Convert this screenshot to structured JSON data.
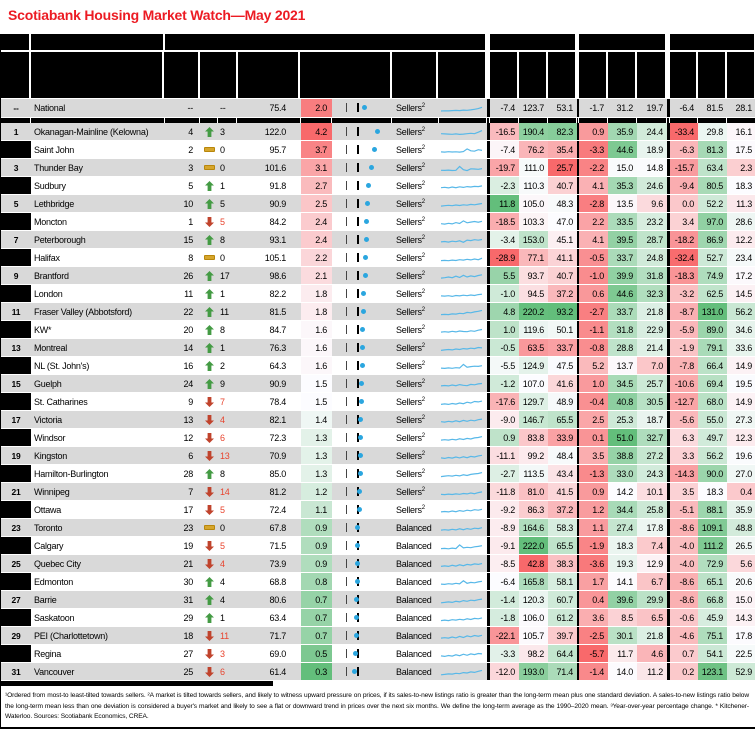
{
  "title": "Scotiabank Housing Market Watch—May 2021",
  "palette": {
    "heat_red": "#F8696B",
    "heat_white": "#FCFCFF",
    "heat_green": "#63BE7B",
    "stripe_gray": "#D9D9D9",
    "title_red": "#EC1B23",
    "spark_blue": "#58B8E8",
    "dot_blue": "#2BA6DF",
    "arrow_up_green": "#449B44",
    "arrow_down_red": "#C0432C",
    "dash_yellow": "#D6A62C",
    "change_down_red": "#E8442E",
    "national_score_color": "#F87D7F"
  },
  "national": {
    "rank": "--",
    "name": "National",
    "cur": "--",
    "dir": "none",
    "chg": "--",
    "ratio": "75.4",
    "score": "2.0",
    "status": "Sellers",
    "status_sup": "2",
    "m": [
      -7.4,
      123.7,
      53.1,
      -1.7,
      31.2,
      19.7,
      -6.4,
      81.5,
      28.1
    ],
    "spark": [
      18,
      20,
      19,
      22,
      24,
      22,
      26,
      25,
      28,
      34,
      40,
      52
    ]
  },
  "rows": [
    {
      "rank": 1,
      "name": "Okanagan-Mainline (Kelowna)",
      "cur": 4,
      "dir": "up",
      "chg": 3,
      "ratio": "122.0",
      "score": 4.2,
      "status": "Sellers",
      "m": [
        -16.5,
        190.4,
        82.3,
        0.9,
        35.9,
        24.4,
        -33.4,
        29.8,
        16.1
      ],
      "spark": [
        30,
        28,
        26,
        25,
        28,
        24,
        26,
        30,
        34,
        30,
        44,
        58
      ]
    },
    {
      "rank": 2,
      "name": "Saint John",
      "cur": 2,
      "dir": "same",
      "chg": 0,
      "ratio": "95.7",
      "score": 3.7,
      "status": "Sellers",
      "m": [
        -7.4,
        76.2,
        35.4,
        -3.3,
        44.6,
        18.9,
        -6.3,
        81.3,
        17.5
      ],
      "spark": [
        28,
        26,
        30,
        27,
        29,
        26,
        31,
        55,
        38,
        35,
        48,
        42
      ]
    },
    {
      "rank": 3,
      "name": "Thunder Bay",
      "cur": 3,
      "dir": "same",
      "chg": 0,
      "ratio": "101.6",
      "score": 3.1,
      "status": "Sellers",
      "m": [
        -19.7,
        111.0,
        25.7,
        -2.2,
        15.0,
        14.8,
        -15.7,
        63.4,
        2.3
      ],
      "spark": [
        25,
        24,
        26,
        23,
        25,
        60,
        30,
        22,
        38,
        36,
        34,
        40
      ]
    },
    {
      "rank": 4,
      "name": "Sudbury",
      "cur": 5,
      "dir": "up",
      "chg": 1,
      "ratio": "91.8",
      "score": 2.7,
      "status": "Sellers",
      "m": [
        -2.3,
        110.3,
        40.7,
        4.1,
        35.3,
        24.6,
        -9.4,
        80.5,
        18.3
      ],
      "spark": [
        30,
        34,
        28,
        36,
        30,
        38,
        33,
        40,
        36,
        42,
        40,
        46
      ]
    },
    {
      "rank": 5,
      "name": "Lethbridge",
      "cur": 10,
      "dir": "up",
      "chg": 5,
      "ratio": "90.9",
      "score": 2.5,
      "status": "Sellers",
      "m": [
        11.8,
        105.0,
        48.3,
        -2.8,
        13.5,
        9.6,
        0.0,
        52.2,
        11.3
      ],
      "spark": [
        26,
        30,
        34,
        30,
        36,
        32,
        38,
        35,
        42,
        38,
        45,
        50
      ]
    },
    {
      "rank": 6,
      "name": "Moncton",
      "cur": 1,
      "dir": "down",
      "chg": 5,
      "ratio": "84.2",
      "score": 2.4,
      "status": "Sellers",
      "m": [
        -18.5,
        103.3,
        47.0,
        2.2,
        33.5,
        23.2,
        3.4,
        97.0,
        28.6
      ],
      "spark": [
        30,
        26,
        34,
        28,
        40,
        32,
        55,
        38,
        45,
        50,
        44,
        52
      ]
    },
    {
      "rank": 7,
      "name": "Peterborough",
      "cur": 15,
      "dir": "up",
      "chg": 8,
      "ratio": "93.1",
      "score": 2.4,
      "status": "Sellers",
      "m": [
        -3.4,
        153.0,
        45.1,
        4.1,
        39.5,
        28.7,
        -18.2,
        86.9,
        12.2
      ],
      "spark": [
        28,
        32,
        26,
        35,
        30,
        38,
        25,
        45,
        40,
        48,
        44,
        50
      ]
    },
    {
      "rank": 8,
      "name": "Halifax",
      "cur": 8,
      "dir": "same",
      "chg": 0,
      "ratio": "105.1",
      "score": 2.2,
      "status": "Sellers",
      "m": [
        -28.9,
        77.1,
        41.1,
        -0.5,
        33.7,
        24.8,
        -32.4,
        52.7,
        23.4
      ],
      "spark": [
        22,
        24,
        21,
        26,
        23,
        30,
        26,
        34,
        28,
        36,
        30,
        44
      ]
    },
    {
      "rank": 9,
      "name": "Brantford",
      "cur": 26,
      "dir": "up",
      "chg": 17,
      "ratio": "98.6",
      "score": 2.1,
      "status": "Sellers",
      "m": [
        5.5,
        93.7,
        40.7,
        -1.0,
        39.9,
        31.8,
        -18.3,
        74.9,
        17.2
      ],
      "spark": [
        26,
        30,
        36,
        30,
        44,
        32,
        52,
        36,
        46,
        40,
        50,
        56
      ]
    },
    {
      "rank": 10,
      "name": "London",
      "cur": 11,
      "dir": "up",
      "chg": 1,
      "ratio": "82.2",
      "score": 1.8,
      "status": "Sellers",
      "m": [
        -1.0,
        94.5,
        37.2,
        0.6,
        44.6,
        32.3,
        -3.2,
        62.5,
        14.5
      ],
      "spark": [
        28,
        26,
        30,
        24,
        32,
        28,
        35,
        30,
        36,
        32,
        40,
        44
      ]
    },
    {
      "rank": 11,
      "name": "Fraser Valley (Abbotsford)",
      "cur": 22,
      "dir": "up",
      "chg": 11,
      "ratio": "81.5",
      "score": 1.8,
      "status": "Sellers",
      "m": [
        4.8,
        220.2,
        93.2,
        -2.7,
        33.7,
        21.8,
        -8.7,
        131.0,
        56.2
      ],
      "spark": [
        22,
        24,
        22,
        28,
        26,
        34,
        30,
        42,
        38,
        46,
        52,
        60
      ]
    },
    {
      "rank": 12,
      "name": "KW*",
      "cur": 20,
      "dir": "up",
      "chg": 8,
      "ratio": "84.7",
      "score": 1.6,
      "status": "Sellers",
      "m": [
        1.0,
        119.6,
        50.1,
        -1.1,
        31.8,
        22.9,
        -5.9,
        89.0,
        34.6
      ],
      "spark": [
        26,
        30,
        26,
        34,
        28,
        36,
        32,
        30,
        38,
        34,
        44,
        50
      ]
    },
    {
      "rank": 13,
      "name": "Montreal",
      "cur": 14,
      "dir": "up",
      "chg": 1,
      "ratio": "76.3",
      "score": 1.6,
      "status": "Sellers",
      "m": [
        -0.5,
        63.5,
        33.7,
        -0.8,
        28.8,
        21.4,
        -1.9,
        79.1,
        33.6
      ],
      "spark": [
        24,
        28,
        32,
        28,
        36,
        32,
        40,
        36,
        44,
        40,
        50,
        46
      ]
    },
    {
      "rank": 14,
      "name": "NL (St. John's)",
      "cur": 16,
      "dir": "up",
      "chg": 2,
      "ratio": "64.3",
      "score": 1.6,
      "status": "Sellers",
      "m": [
        -5.5,
        124.9,
        47.5,
        5.2,
        13.7,
        7.0,
        -7.8,
        66.4,
        14.9
      ],
      "spark": [
        26,
        24,
        28,
        25,
        30,
        27,
        60,
        35,
        40,
        44,
        42,
        48
      ]
    },
    {
      "rank": 15,
      "name": "Guelph",
      "cur": 24,
      "dir": "up",
      "chg": 9,
      "ratio": "90.9",
      "score": 1.5,
      "status": "Sellers",
      "m": [
        -1.2,
        107.0,
        41.6,
        1.0,
        34.5,
        25.7,
        -10.6,
        69.4,
        19.5
      ],
      "spark": [
        28,
        32,
        28,
        36,
        30,
        40,
        34,
        30,
        42,
        38,
        46,
        50
      ]
    },
    {
      "rank": 16,
      "name": "St. Catharines",
      "cur": 9,
      "dir": "down",
      "chg": 7,
      "ratio": "78.4",
      "score": 1.5,
      "status": "Sellers",
      "m": [
        -17.6,
        129.7,
        48.9,
        -0.4,
        40.8,
        30.5,
        -12.7,
        68.0,
        14.9
      ],
      "spark": [
        24,
        28,
        24,
        32,
        26,
        36,
        30,
        44,
        36,
        50,
        46,
        54
      ]
    },
    {
      "rank": 17,
      "name": "Victoria",
      "cur": 13,
      "dir": "down",
      "chg": 4,
      "ratio": "82.1",
      "score": 1.4,
      "status": "Sellers",
      "m": [
        -9.0,
        146.7,
        65.5,
        2.5,
        25.3,
        18.7,
        -5.6,
        55.0,
        27.3
      ],
      "spark": [
        30,
        26,
        34,
        28,
        38,
        30,
        42,
        34,
        44,
        38,
        48,
        54
      ]
    },
    {
      "rank": 18,
      "name": "Windsor",
      "cur": 12,
      "dir": "down",
      "chg": 6,
      "ratio": "72.3",
      "score": 1.3,
      "status": "Sellers",
      "m": [
        0.9,
        83.8,
        33.9,
        0.1,
        51.0,
        32.7,
        6.3,
        49.7,
        12.3
      ],
      "spark": [
        26,
        30,
        26,
        34,
        28,
        38,
        32,
        42,
        36,
        46,
        50,
        58
      ]
    },
    {
      "rank": 19,
      "name": "Kingston",
      "cur": 6,
      "dir": "down",
      "chg": 13,
      "ratio": "70.9",
      "score": 1.3,
      "status": "Sellers",
      "m": [
        -11.1,
        99.2,
        48.4,
        3.5,
        38.8,
        27.2,
        3.3,
        56.2,
        19.6
      ],
      "spark": [
        28,
        24,
        32,
        26,
        36,
        28,
        38,
        30,
        42,
        36,
        46,
        52
      ]
    },
    {
      "rank": 20,
      "name": "Hamilton-Burlington",
      "cur": 28,
      "dir": "up",
      "chg": 8,
      "ratio": "85.0",
      "score": 1.3,
      "status": "Sellers",
      "m": [
        -2.7,
        113.5,
        43.4,
        -1.3,
        33.0,
        24.3,
        -14.3,
        90.0,
        27.0
      ],
      "spark": [
        22,
        26,
        30,
        26,
        34,
        28,
        38,
        32,
        42,
        46,
        50,
        58
      ]
    },
    {
      "rank": 21,
      "name": "Winnipeg",
      "cur": 7,
      "dir": "down",
      "chg": 14,
      "ratio": "81.2",
      "score": 1.2,
      "status": "Sellers",
      "m": [
        -11.8,
        81.0,
        41.5,
        0.9,
        14.2,
        10.1,
        3.5,
        18.3,
        0.4
      ],
      "spark": [
        24,
        22,
        26,
        23,
        28,
        25,
        32,
        28,
        36,
        30,
        40,
        46
      ]
    },
    {
      "rank": 22,
      "name": "Ottawa",
      "cur": 17,
      "dir": "down",
      "chg": 5,
      "ratio": "72.4",
      "score": 1.1,
      "status": "Sellers",
      "m": [
        -9.2,
        86.3,
        37.2,
        1.2,
        34.4,
        25.8,
        -5.1,
        88.1,
        35.9
      ],
      "spark": [
        28,
        32,
        28,
        36,
        30,
        40,
        34,
        44,
        38,
        48,
        44,
        52
      ]
    },
    {
      "rank": 23,
      "name": "Toronto",
      "cur": 23,
      "dir": "same",
      "chg": 0,
      "ratio": "67.8",
      "score": 0.9,
      "status": "Balanced",
      "m": [
        -8.9,
        164.6,
        58.3,
        1.1,
        27.4,
        17.8,
        -8.6,
        109.1,
        48.8
      ],
      "spark": [
        26,
        30,
        26,
        34,
        28,
        38,
        30,
        40,
        34,
        44,
        40,
        48
      ]
    },
    {
      "rank": 24,
      "name": "Calgary",
      "cur": 19,
      "dir": "down",
      "chg": 5,
      "ratio": "71.5",
      "score": 0.9,
      "status": "Balanced",
      "m": [
        -9.1,
        222.0,
        65.5,
        -1.9,
        18.3,
        7.4,
        -4.0,
        111.2,
        26.5
      ],
      "spark": [
        22,
        24,
        20,
        26,
        22,
        55,
        28,
        34,
        30,
        38,
        42,
        48
      ]
    },
    {
      "rank": 25,
      "name": "Quebec City",
      "cur": 21,
      "dir": "down",
      "chg": 4,
      "ratio": "73.9",
      "score": 0.9,
      "status": "Balanced",
      "m": [
        -8.5,
        42.8,
        38.3,
        -3.6,
        19.3,
        12.9,
        -4.0,
        72.9,
        5.6
      ],
      "spark": [
        24,
        28,
        24,
        34,
        26,
        38,
        30,
        42,
        36,
        46,
        42,
        50
      ]
    },
    {
      "rank": 26,
      "name": "Edmonton",
      "cur": 30,
      "dir": "up",
      "chg": 4,
      "ratio": "68.8",
      "score": 0.8,
      "status": "Balanced",
      "m": [
        -6.4,
        165.8,
        58.1,
        1.7,
        14.1,
        6.7,
        -8.6,
        65.1,
        20.6
      ],
      "spark": [
        26,
        24,
        30,
        26,
        34,
        28,
        56,
        34,
        42,
        38,
        46,
        52
      ]
    },
    {
      "rank": 27,
      "name": "Barrie",
      "cur": 31,
      "dir": "up",
      "chg": 4,
      "ratio": "80.6",
      "score": 0.7,
      "status": "Balanced",
      "m": [
        -1.4,
        120.3,
        60.7,
        0.4,
        39.6,
        29.9,
        -8.6,
        66.8,
        15.0
      ],
      "spark": [
        20,
        24,
        28,
        24,
        34,
        28,
        40,
        34,
        44,
        40,
        48,
        54
      ]
    },
    {
      "rank": 28,
      "name": "Saskatoon",
      "cur": 29,
      "dir": "up",
      "chg": 1,
      "ratio": "63.4",
      "score": 0.7,
      "status": "Balanced",
      "m": [
        -1.8,
        106.0,
        61.2,
        3.6,
        8.5,
        6.5,
        -0.6,
        45.9,
        14.3
      ],
      "spark": [
        22,
        26,
        22,
        30,
        26,
        34,
        28,
        38,
        32,
        42,
        38,
        46
      ]
    },
    {
      "rank": 29,
      "name": "PEI (Charlottetown)",
      "cur": 18,
      "dir": "down",
      "chg": 11,
      "ratio": "71.7",
      "score": 0.7,
      "status": "Balanced",
      "m": [
        -22.1,
        105.7,
        39.7,
        -2.5,
        30.1,
        21.8,
        -4.6,
        75.1,
        17.8
      ],
      "spark": [
        26,
        30,
        26,
        36,
        28,
        42,
        32,
        46,
        38,
        50,
        44,
        52
      ]
    },
    {
      "rank": 30,
      "name": "Regina",
      "cur": 27,
      "dir": "down",
      "chg": 3,
      "ratio": "69.0",
      "score": 0.5,
      "status": "Balanced",
      "m": [
        -3.3,
        98.2,
        64.4,
        -5.7,
        11.7,
        4.6,
        0.7,
        54.1,
        22.5
      ],
      "spark": [
        28,
        24,
        32,
        26,
        38,
        30,
        44,
        34,
        46,
        40,
        50,
        46
      ]
    },
    {
      "rank": 31,
      "name": "Vancouver",
      "cur": 25,
      "dir": "down",
      "chg": 6,
      "ratio": "61.4",
      "score": 0.3,
      "status": "Balanced",
      "m": [
        -12.0,
        193.0,
        71.4,
        -1.4,
        14.0,
        11.2,
        0.2,
        123.1,
        52.9
      ],
      "spark": [
        20,
        24,
        28,
        26,
        34,
        30,
        40,
        36,
        46,
        42,
        52,
        60
      ]
    }
  ],
  "footnote": "¹Ordered from most-to least-tilted towards sellers. ²A market is tilted towards sellers, and likely to witness upward pressure on prices, if its sales-to-new listings ratio is greater than the long-term mean plus one standard deviation. A sales-to-new listings ratio below the long-term mean less than one deviation is considered a buyer's market and likely to see a flat or downward trend in prices over the next six months. We define the long-term average as the 1990–2020 mean. ³Year-over-year percentage change. * Kitchener-Waterloo. Sources: Scotiabank Economics, CREA."
}
